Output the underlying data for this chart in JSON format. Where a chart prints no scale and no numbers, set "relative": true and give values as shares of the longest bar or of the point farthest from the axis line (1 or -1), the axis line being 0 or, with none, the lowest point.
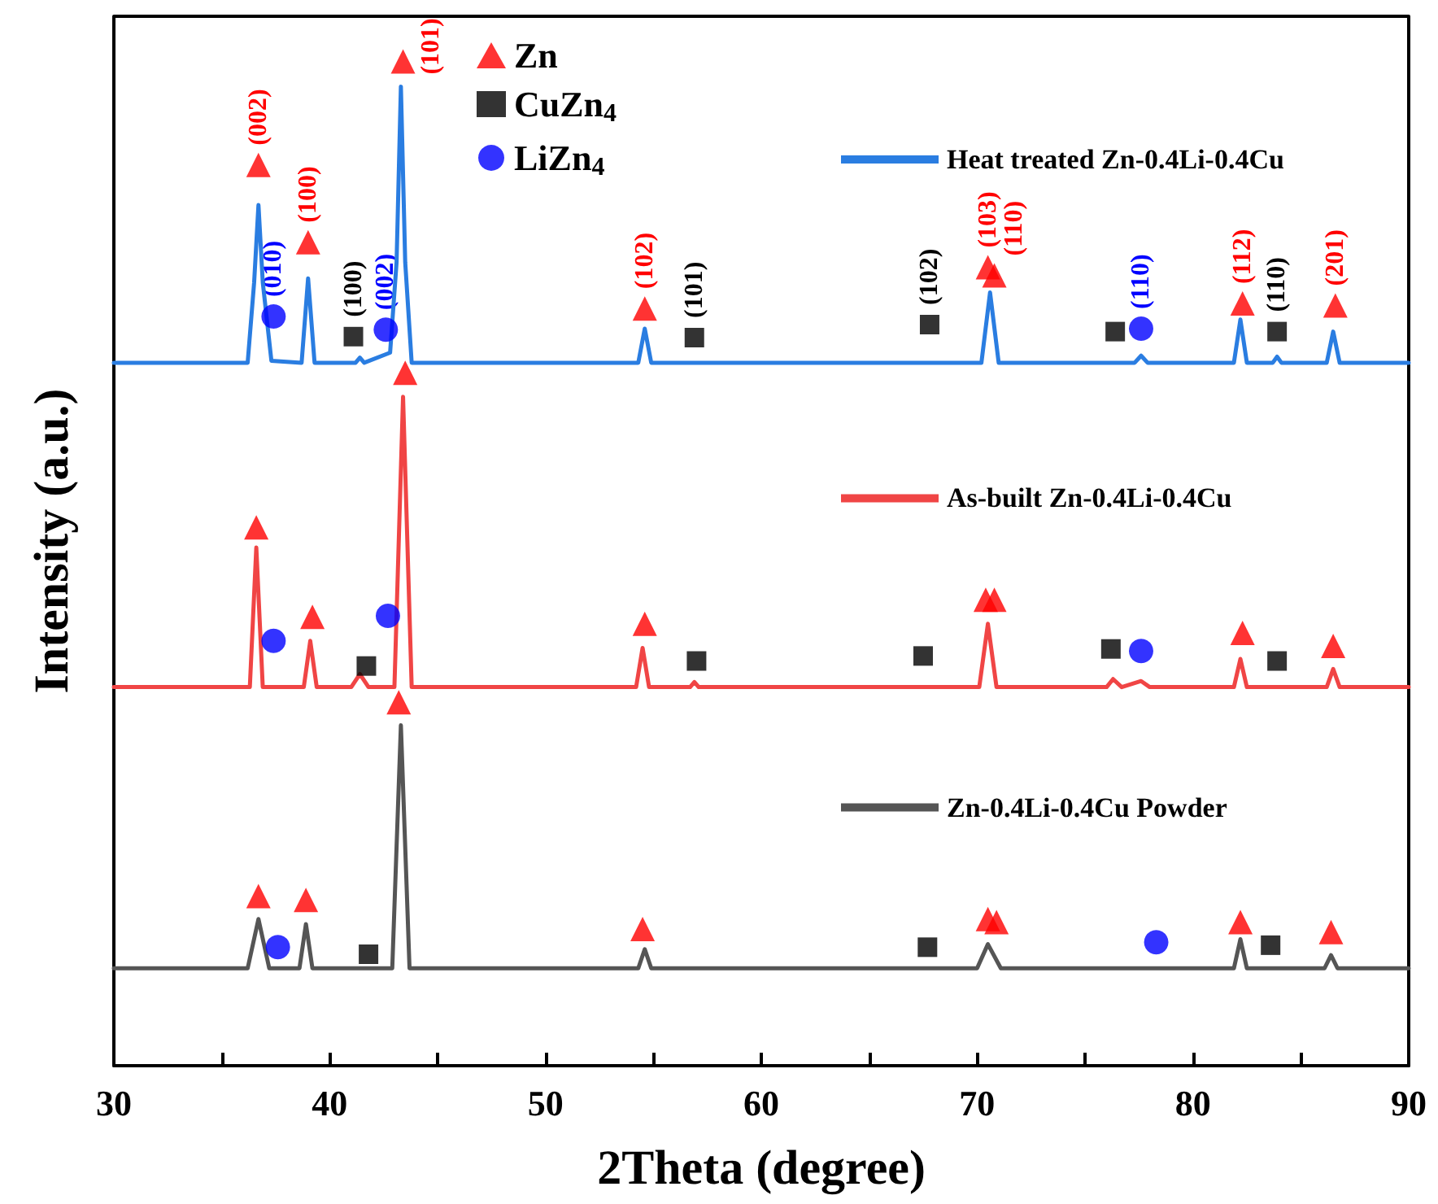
{
  "chart_data": {
    "type": "line",
    "xlabel": "2Theta (degree)",
    "ylabel": "Intensity (a.u.)",
    "relative": true,
    "legend": "top",
    "xlim": [
      30,
      90
    ],
    "xticks": [
      30,
      {
        "value": 35,
        "label": null
      },
      40,
      {
        "value": 45,
        "label": null
      },
      50,
      {
        "value": 55,
        "label": null
      },
      60,
      {
        "value": 65,
        "label": null
      },
      70,
      {
        "value": 75,
        "label": null
      },
      80,
      {
        "value": 85,
        "label": null
      },
      90
    ],
    "series": [
      {
        "name": "Heat treated Zn-0.4Li-0.4Cu",
        "color": "#2a7de1",
        "x": [
          30,
          36.2,
          36.5,
          36.7,
          36.9,
          37.3,
          38.7,
          39.0,
          39.3,
          41.2,
          41.4,
          41.6,
          42.8,
          43.1,
          43.3,
          43.5,
          43.8,
          54.3,
          54.6,
          54.9,
          70.2,
          70.6,
          71.0,
          77.3,
          77.6,
          77.9,
          81.9,
          82.2,
          82.5,
          83.7,
          83.9,
          84.1,
          86.2,
          86.5,
          86.8,
          90
        ],
        "values": [
          0.7,
          0.7,
          0.78,
          0.857,
          0.78,
          0.702,
          0.7,
          0.784,
          0.7,
          0.7,
          0.705,
          0.7,
          0.71,
          0.8,
          0.975,
          0.8,
          0.7,
          0.7,
          0.734,
          0.7,
          0.7,
          0.77,
          0.7,
          0.7,
          0.707,
          0.7,
          0.7,
          0.743,
          0.7,
          0.7,
          0.706,
          0.7,
          0.7,
          0.731,
          0.7,
          0.7
        ]
      },
      {
        "name": "As-built Zn-0.4Li-0.4Cu",
        "color": "#f04545",
        "x": [
          30,
          36.3,
          36.6,
          36.9,
          38.8,
          39.1,
          39.4,
          41.0,
          41.4,
          41.8,
          43.0,
          43.4,
          43.8,
          54.2,
          54.5,
          54.8,
          56.7,
          56.9,
          57.1,
          70.1,
          70.5,
          70.9,
          76.0,
          76.3,
          76.7,
          77.6,
          78.0,
          81.9,
          82.2,
          82.5,
          86.2,
          86.5,
          86.8,
          90
        ],
        "values": [
          0.377,
          0.377,
          0.516,
          0.377,
          0.377,
          0.423,
          0.377,
          0.377,
          0.39,
          0.377,
          0.377,
          0.666,
          0.377,
          0.377,
          0.416,
          0.377,
          0.377,
          0.382,
          0.377,
          0.377,
          0.44,
          0.377,
          0.377,
          0.385,
          0.377,
          0.383,
          0.377,
          0.377,
          0.405,
          0.377,
          0.377,
          0.395,
          0.377,
          0.377
        ]
      },
      {
        "name": "Zn-0.4Li-0.4Cu Powder",
        "color": "#555555",
        "x": [
          30,
          36.2,
          36.7,
          37.2,
          38.6,
          38.9,
          39.2,
          42.9,
          43.3,
          43.7,
          54.3,
          54.6,
          54.9,
          70.0,
          70.5,
          71.1,
          81.9,
          82.2,
          82.5,
          86.1,
          86.4,
          86.7,
          90
        ],
        "values": [
          0.097,
          0.097,
          0.146,
          0.097,
          0.097,
          0.141,
          0.097,
          0.097,
          0.339,
          0.097,
          0.097,
          0.116,
          0.097,
          0.097,
          0.121,
          0.097,
          0.097,
          0.126,
          0.097,
          0.097,
          0.11,
          0.097,
          0.097
        ]
      },
      {
        "name": "Zn",
        "type": "scatter",
        "marker": "triangle",
        "color": "#ff0000",
        "x": [
          36.7,
          39.0,
          43.4,
          54.6,
          70.5,
          70.8,
          82.3,
          86.6,
          36.6,
          39.2,
          43.5,
          54.6,
          70.4,
          70.8,
          82.3,
          86.5,
          36.7,
          38.9,
          43.2,
          54.5,
          70.5,
          70.9,
          82.2,
          86.4
        ],
        "values": [
          0.897,
          0.82,
          1.0,
          0.754,
          0.795,
          0.787,
          0.759,
          0.757,
          0.536,
          0.447,
          0.69,
          0.44,
          0.464,
          0.464,
          0.431,
          0.418,
          0.169,
          0.165,
          0.362,
          0.136,
          0.146,
          0.143,
          0.143,
          0.133
        ]
      },
      {
        "name": "CuZn$_{4}$",
        "type": "scatter",
        "marker": "square",
        "color": "#000000",
        "x": [
          41.1,
          56.9,
          67.8,
          76.4,
          83.9,
          41.7,
          57.0,
          67.5,
          76.2,
          83.9,
          41.8,
          67.7,
          83.6
        ],
        "values": [
          0.726,
          0.725,
          0.738,
          0.731,
          0.731,
          0.398,
          0.403,
          0.408,
          0.415,
          0.403,
          0.111,
          0.118,
          0.12
        ]
      },
      {
        "name": "LiZn$_{4}$",
        "type": "scatter",
        "marker": "circle",
        "color": "#0000ff",
        "x": [
          37.4,
          42.6,
          77.6,
          37.4,
          42.7,
          77.6,
          37.6,
          78.3
        ],
        "values": [
          0.746,
          0.733,
          0.734,
          0.423,
          0.448,
          0.413,
          0.118,
          0.123
        ]
      }
    ],
    "annotations": [
      {
        "text": "(002)",
        "x": 36.7,
        "y": 0.897
      },
      {
        "text": "(100)",
        "x": 39.0,
        "y": 0.82
      },
      {
        "text": "(101)",
        "x": 43.4,
        "y": 1.0
      },
      {
        "text": "(010)",
        "x": 37.4,
        "y": 0.746
      },
      {
        "text": "(100)",
        "x": 41.1,
        "y": 0.726
      },
      {
        "text": "(002)",
        "x": 42.6,
        "y": 0.733
      },
      {
        "text": "(102)",
        "x": 54.6,
        "y": 0.754
      },
      {
        "text": "(101)",
        "x": 56.9,
        "y": 0.725
      },
      {
        "text": "(102)",
        "x": 67.8,
        "y": 0.738
      },
      {
        "text": "(103)",
        "x": 70.5,
        "y": 0.795
      },
      {
        "text": "(110)",
        "x": 70.8,
        "y": 0.787
      },
      {
        "text": "(110)",
        "x": 77.6,
        "y": 0.734
      },
      {
        "text": "(112)",
        "x": 82.3,
        "y": 0.759
      },
      {
        "text": "(110)",
        "x": 83.9,
        "y": 0.731
      },
      {
        "text": "(201)",
        "x": 86.6,
        "y": 0.757
      }
    ]
  }
}
